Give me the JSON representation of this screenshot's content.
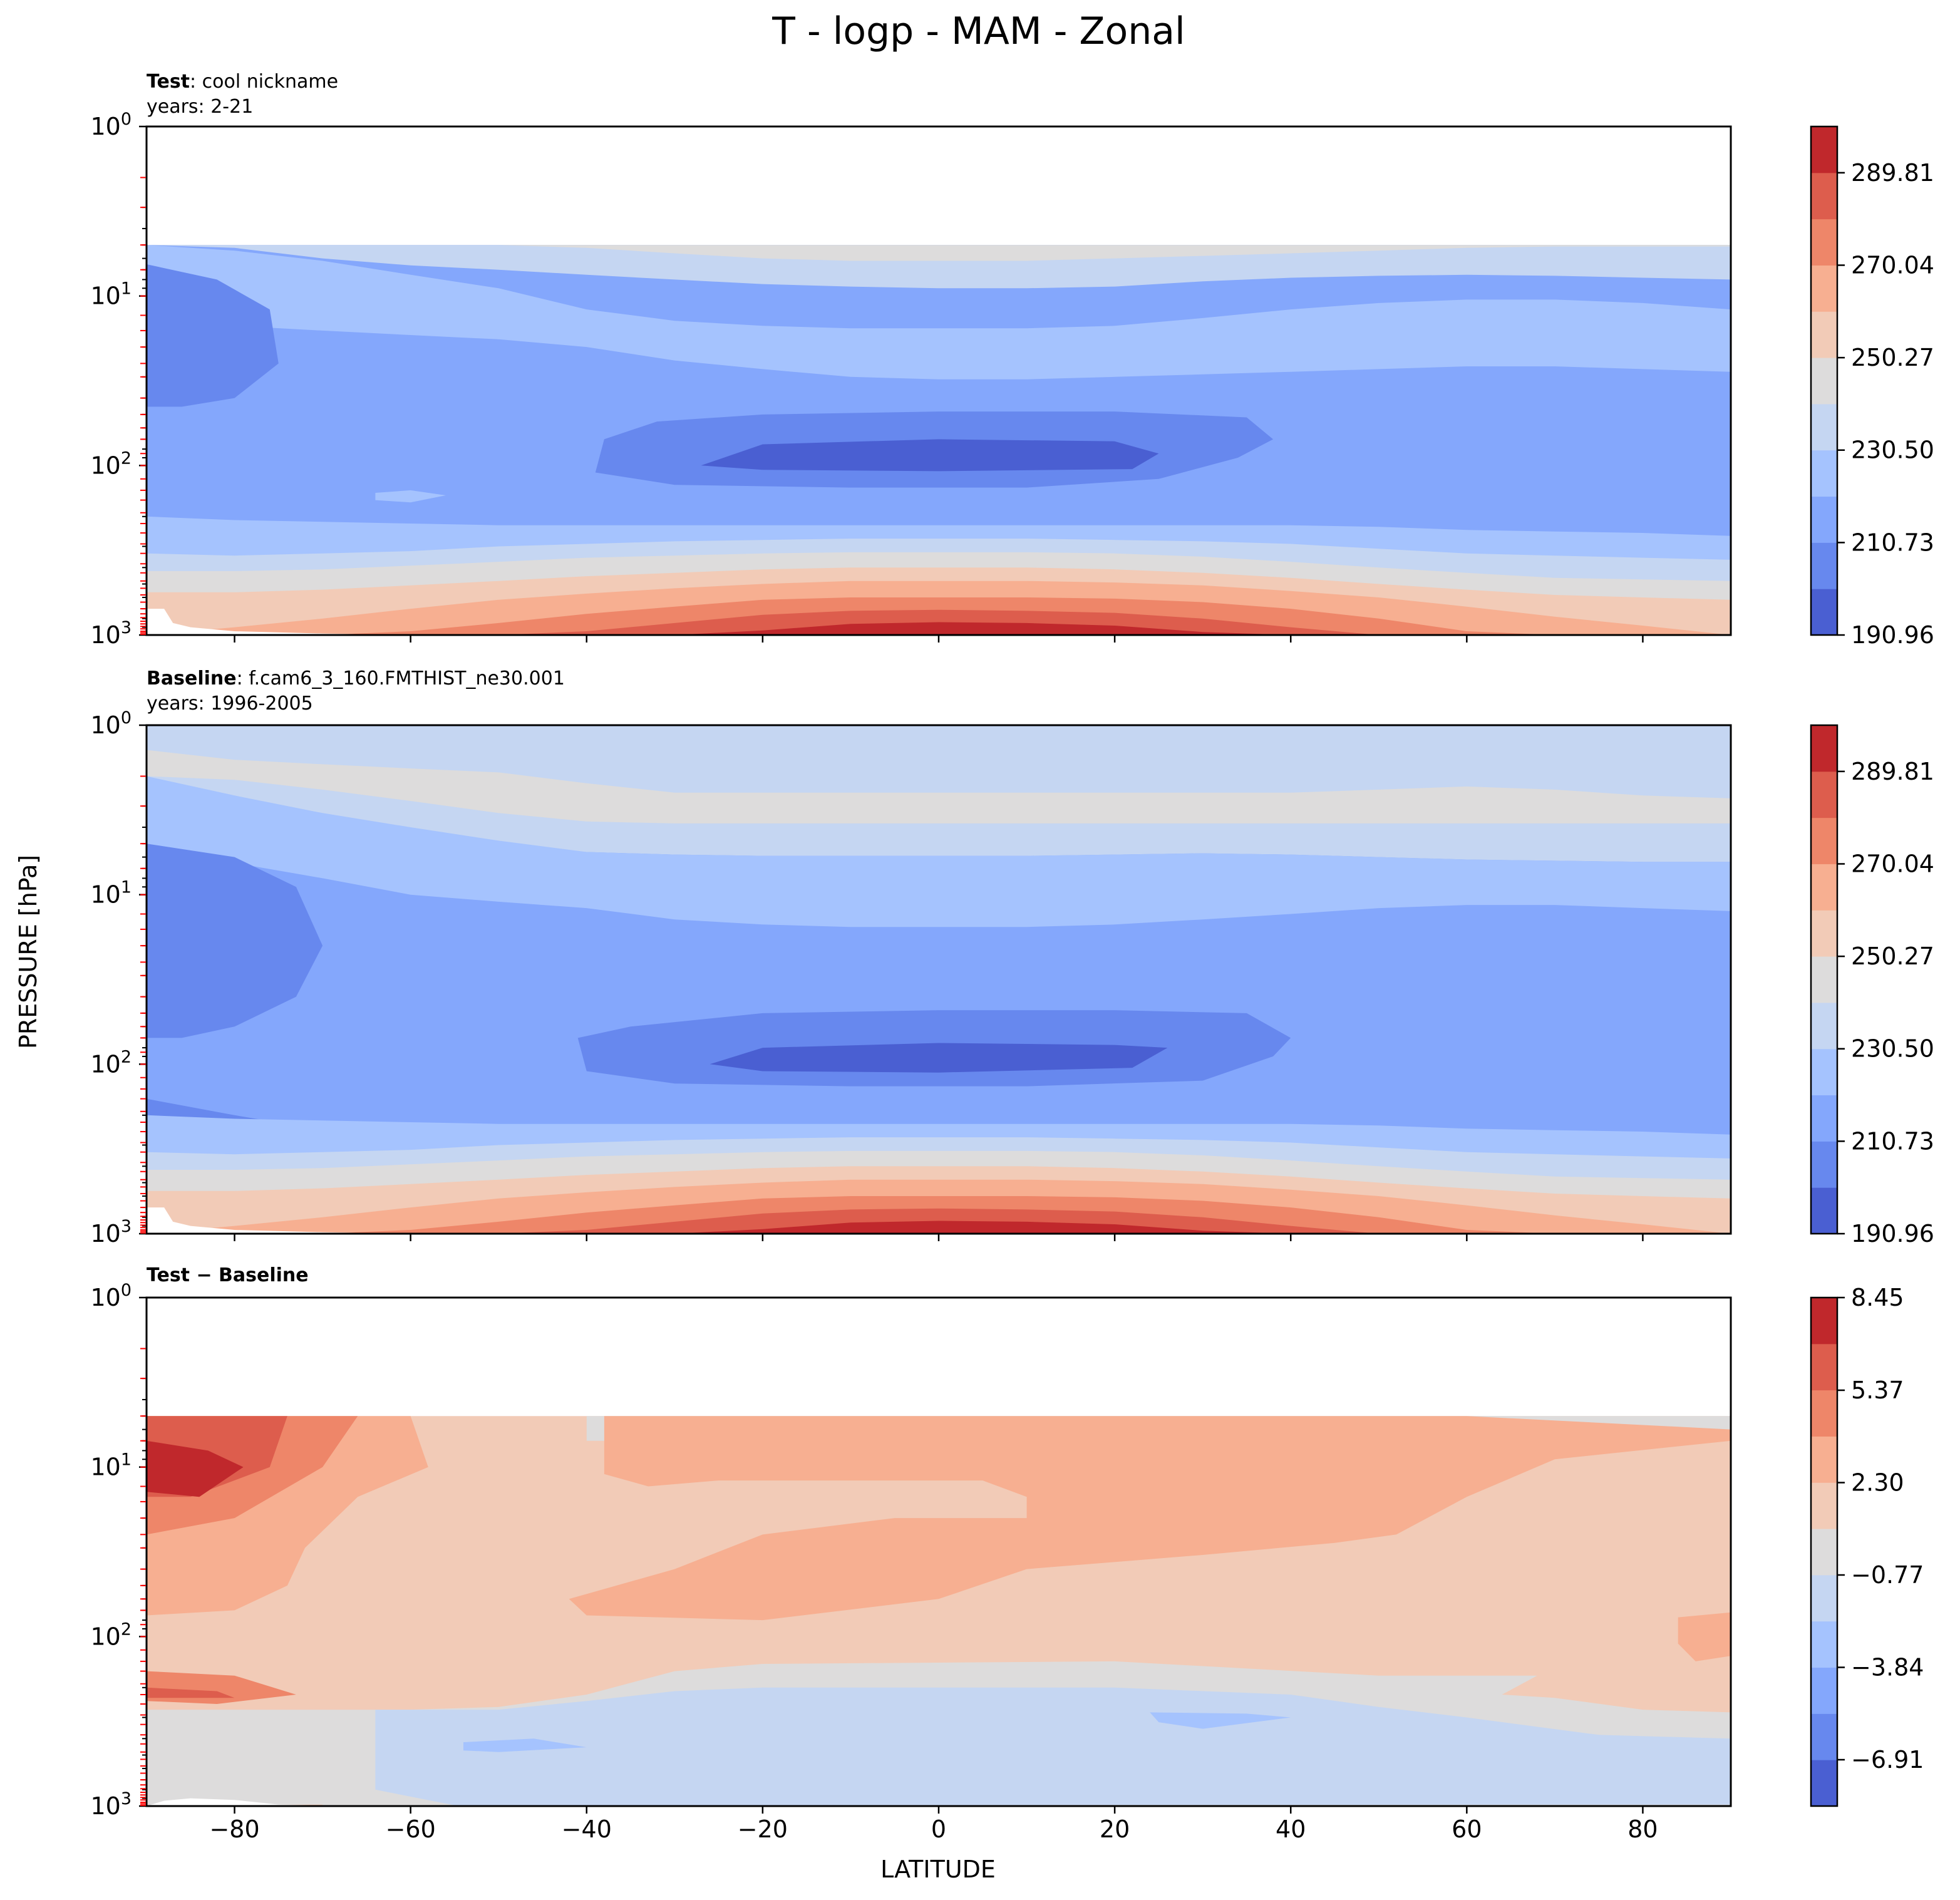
{
  "figure": {
    "title": "T - logp - MAM - Zonal",
    "ylabel": "PRESSURE [hPa]",
    "xlabel": "LATITUDE"
  },
  "chart_data": [
    {
      "type": "heatmap",
      "panel_label_bold": "Test",
      "panel_label_rest": ": cool nickname",
      "panel_years": "years: 2-21",
      "x_range": [
        -90,
        90
      ],
      "y_range": [
        1,
        1000
      ],
      "y_scale": "log",
      "x_ticks": [
        -80,
        -60,
        -40,
        -20,
        0,
        20,
        40,
        60,
        80
      ],
      "x_tick_labels": [
        "−80",
        "−60",
        "−40",
        "−20",
        "0",
        "20",
        "40",
        "60",
        "80"
      ],
      "y_ticks": [
        1,
        10,
        100,
        1000
      ],
      "y_tick_labels": [
        [
          "10",
          "0"
        ],
        [
          "10",
          "1"
        ],
        [
          "10",
          "2"
        ],
        [
          "10",
          "3"
        ]
      ],
      "data_top_hpa": 5,
      "colorbar": {
        "levels": [
          190.96,
          200.85,
          210.73,
          220.62,
          230.5,
          240.39,
          250.27,
          260.16,
          270.04,
          279.93,
          289.81,
          299.7
        ],
        "tick_labels": [
          "190.96",
          "210.73",
          "230.50",
          "250.27",
          "270.04",
          "289.81"
        ]
      },
      "bands": [
        {
          "level": 0,
          "top": 5,
          "bottom": 1000
        },
        {
          "level": 1,
          "top": 5,
          "bottom": 1000
        },
        {
          "level": 2,
          "top": 5,
          "bottom": 1000
        },
        {
          "level": 3,
          "top": 5,
          "bottom": 1000
        },
        {
          "level": 4,
          "top": 5,
          "bottom": 1000
        }
      ]
    },
    {
      "type": "heatmap",
      "panel_label_bold": "Baseline",
      "panel_label_rest": ": f.cam6_3_160.FMTHIST_ne30.001",
      "panel_years": "years: 1996-2005",
      "x_range": [
        -90,
        90
      ],
      "y_range": [
        1,
        1000
      ],
      "y_scale": "log",
      "x_ticks": [
        -80,
        -60,
        -40,
        -20,
        0,
        20,
        40,
        60,
        80
      ],
      "x_tick_labels": [
        "−80",
        "−60",
        "−40",
        "−20",
        "0",
        "20",
        "40",
        "60",
        "80"
      ],
      "y_ticks": [
        1,
        10,
        100,
        1000
      ],
      "y_tick_labels": [
        [
          "10",
          "0"
        ],
        [
          "10",
          "1"
        ],
        [
          "10",
          "2"
        ],
        [
          "10",
          "3"
        ]
      ],
      "data_top_hpa": 1,
      "colorbar": {
        "levels": [
          190.96,
          200.85,
          210.73,
          220.62,
          230.5,
          240.39,
          250.27,
          260.16,
          270.04,
          279.93,
          289.81,
          299.7
        ],
        "tick_labels": [
          "190.96",
          "210.73",
          "230.50",
          "250.27",
          "270.04",
          "289.81"
        ]
      }
    },
    {
      "type": "heatmap",
      "panel_label_bold": "Test − Baseline",
      "panel_label_rest": "",
      "panel_years": "",
      "x_range": [
        -90,
        90
      ],
      "y_range": [
        1,
        1000
      ],
      "y_scale": "log",
      "x_ticks": [
        -80,
        -60,
        -40,
        -20,
        0,
        20,
        40,
        60,
        80
      ],
      "x_tick_labels": [
        "−80",
        "−60",
        "−40",
        "−20",
        "0",
        "20",
        "40",
        "60",
        "80"
      ],
      "y_ticks": [
        1,
        10,
        100,
        1000
      ],
      "y_tick_labels": [
        [
          "10",
          "0"
        ],
        [
          "10",
          "1"
        ],
        [
          "10",
          "2"
        ],
        [
          "10",
          "3"
        ]
      ],
      "data_top_hpa": 5,
      "colorbar": {
        "levels": [
          -8.45,
          -6.91,
          -5.37,
          -3.84,
          -2.3,
          -0.77,
          0.77,
          2.3,
          3.84,
          5.37,
          6.91,
          8.45
        ],
        "tick_labels": [
          "−6.91",
          "−3.84",
          "−0.77",
          "2.30",
          "5.37",
          "8.45"
        ]
      }
    }
  ],
  "colors": {
    "cmap": [
      "#4a5fd2",
      "#6788ee",
      "#84a7fc",
      "#a5c3fe",
      "#c5d6f2",
      "#dddcdc",
      "#f2cbb7",
      "#f7af91",
      "#ee8669",
      "#dd5d4d",
      "#c0282c"
    ],
    "frame": "#000000",
    "minor_tick": "#ff0000"
  }
}
